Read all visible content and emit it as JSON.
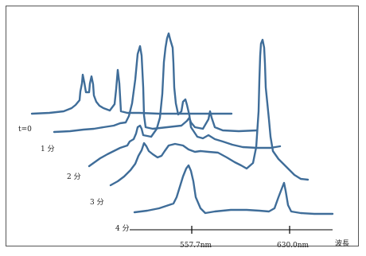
{
  "time_labels": [
    "t=0",
    "1 分",
    "2 分",
    "3 分",
    "4 分"
  ],
  "axis": {
    "tick_labels": [
      "557.7nm",
      "630.0nm"
    ],
    "unit_label": "波長"
  },
  "colors": {
    "curve": "#3f6d99",
    "axis": "#000000",
    "frame": "#555555"
  }
}
